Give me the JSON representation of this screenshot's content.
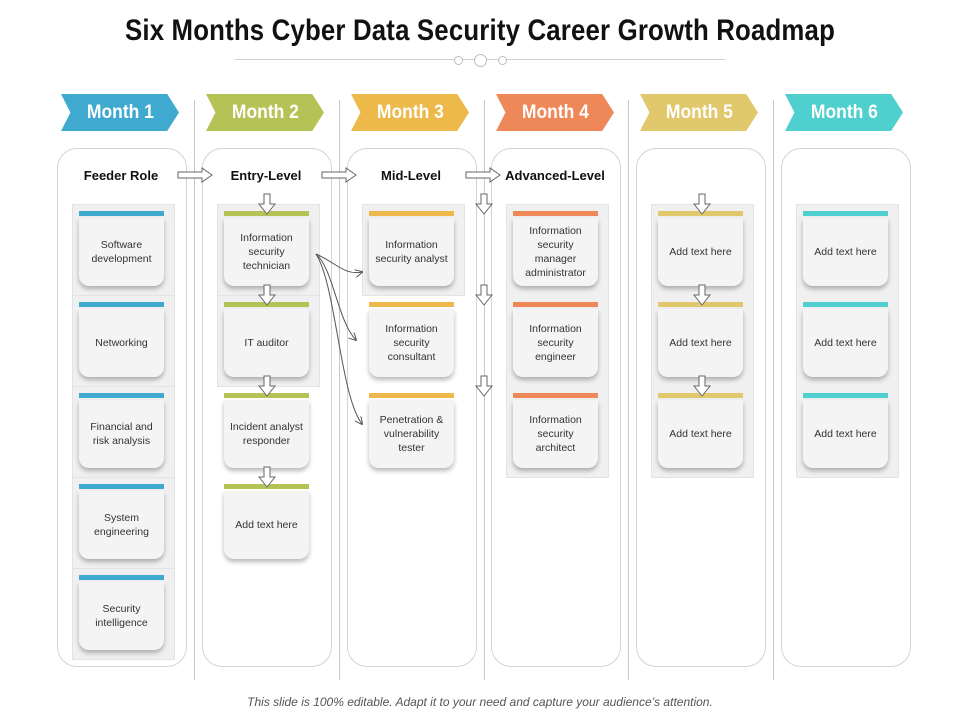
{
  "title": "Six Months Cyber Data Security Career Growth Roadmap",
  "footer": "This slide is 100% editable. Adapt it to your need and capture your audience’s attention.",
  "months": [
    {
      "label": "Month 1",
      "color": "#3fa9cf"
    },
    {
      "label": "Month 2",
      "color": "#b5c255"
    },
    {
      "label": "Month 3",
      "color": "#ecb94a"
    },
    {
      "label": "Month 4",
      "color": "#ef8858"
    },
    {
      "label": "Month 5",
      "color": "#e1c86d"
    },
    {
      "label": "Month 6",
      "color": "#4fcfce"
    }
  ],
  "levels": [
    "Feeder Role",
    "Entry-Level",
    "Mid-Level",
    "Advanced-Level"
  ],
  "columns": [
    {
      "cards": [
        "Software development",
        "Networking",
        "Financial and risk analysis",
        "System engineering",
        "Security intelligence"
      ]
    },
    {
      "cards": [
        "Information security technician",
        "IT auditor",
        "Incident analyst responder",
        "Add text here"
      ]
    },
    {
      "cards": [
        "Information security analyst",
        "Information security consultant",
        "Penetration & vulnerability tester"
      ]
    },
    {
      "cards": [
        "Information security manager administrator",
        "Information security engineer",
        "Information security architect"
      ]
    },
    {
      "cards": [
        "Add text here",
        "Add text here",
        "Add text here"
      ]
    },
    {
      "cards": [
        "Add text here",
        "Add text here",
        "Add text here"
      ]
    }
  ]
}
